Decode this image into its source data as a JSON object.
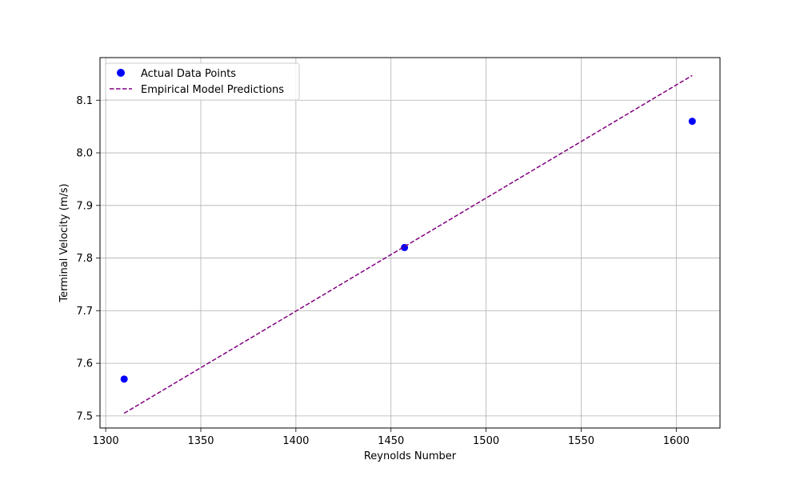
{
  "chart_data": {
    "type": "scatter",
    "title": "",
    "xlabel": "Reynolds Number",
    "ylabel": "Terminal Velocity (m/s)",
    "xlim": [
      1297,
      1623
    ],
    "ylim": [
      7.477,
      8.181
    ],
    "xticks": [
      1300,
      1350,
      1400,
      1450,
      1500,
      1550,
      1600
    ],
    "yticks": [
      7.5,
      7.6,
      7.7,
      7.8,
      7.9,
      8.0,
      8.1
    ],
    "xtick_labels": [
      "1300",
      "1350",
      "1400",
      "1450",
      "1500",
      "1550",
      "1600"
    ],
    "ytick_labels": [
      "7.5",
      "7.6",
      "7.7",
      "7.8",
      "7.9",
      "8.0",
      "8.1"
    ],
    "grid": true,
    "legend_position": "upper-left",
    "series": [
      {
        "name": "Actual Data Points",
        "kind": "scatter",
        "color": "#0000ff",
        "x": [
          1309.7,
          1457.1,
          1608.4
        ],
        "y": [
          7.57,
          7.82,
          8.06
        ]
      },
      {
        "name": "Empirical Model Predictions",
        "kind": "line",
        "style": "dashed",
        "color": "#800080",
        "x": [
          1309.7,
          1608.4
        ],
        "y": [
          7.505,
          8.147
        ]
      }
    ]
  }
}
